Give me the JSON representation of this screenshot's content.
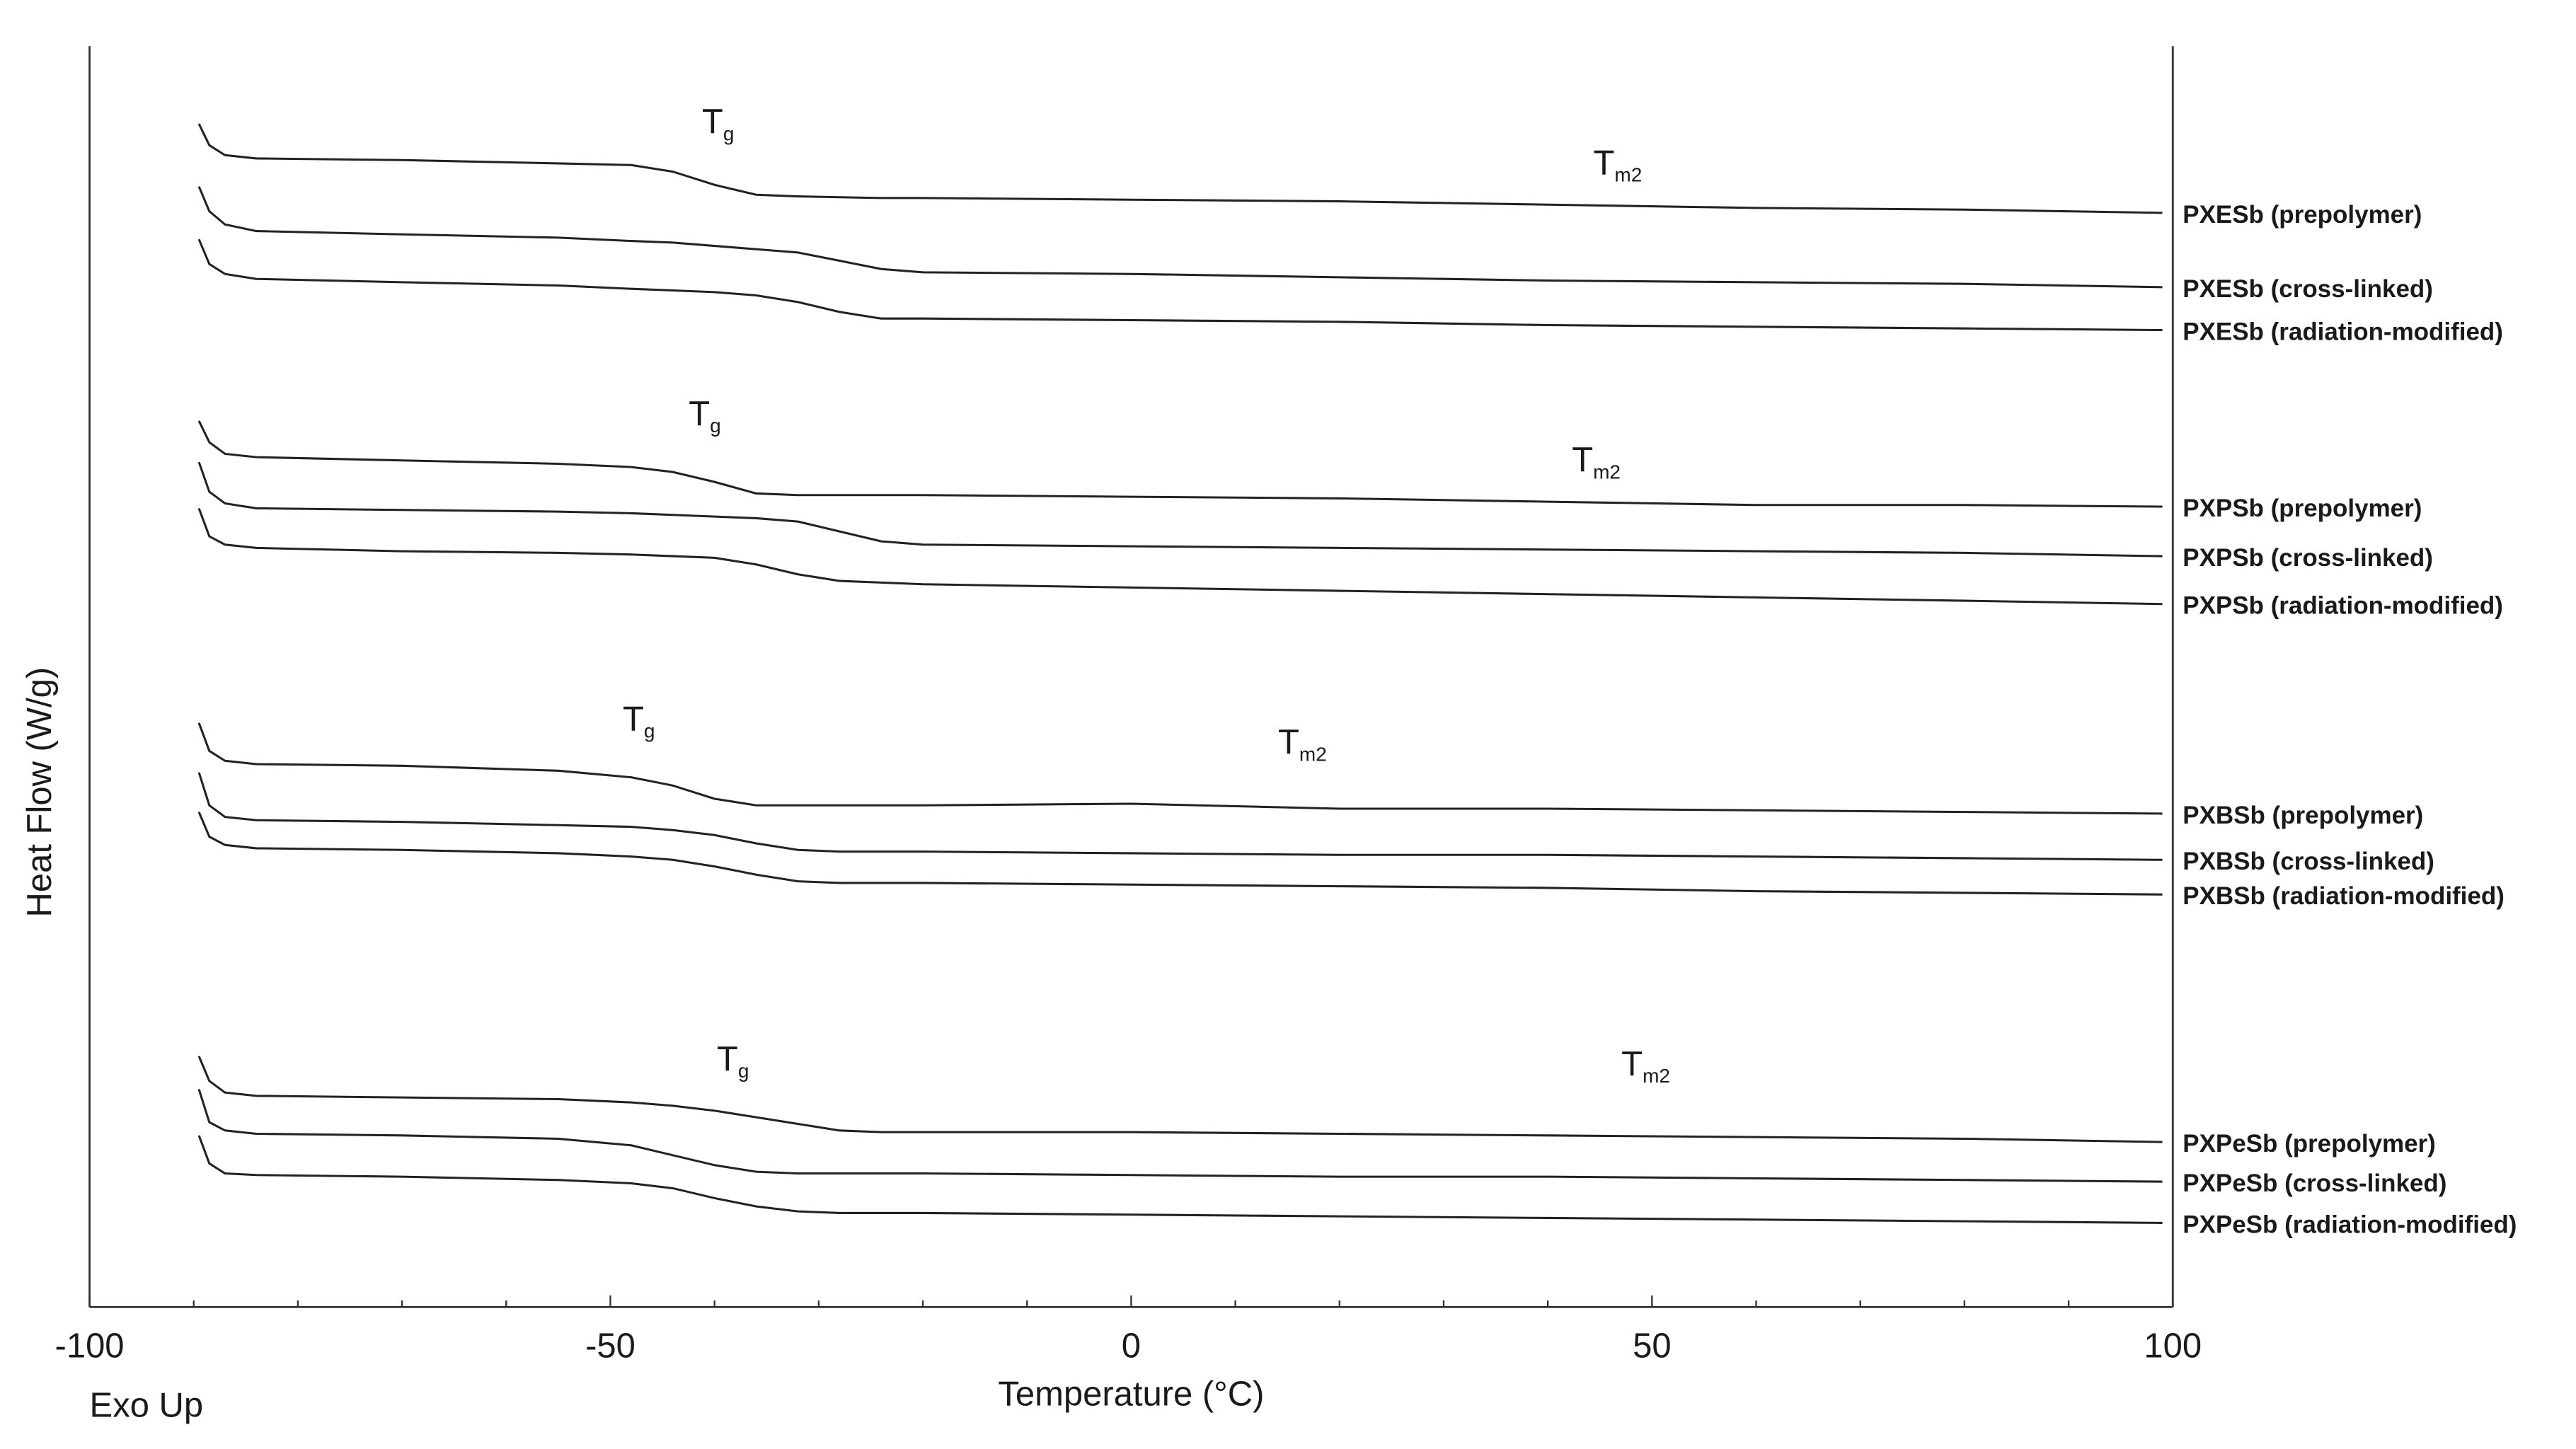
{
  "chart_data": {
    "type": "line",
    "y_label": "Heat Flow (W/g)",
    "x_label": "Temperature (°C)",
    "note": "Exo Up",
    "xlim": [
      -100,
      100
    ],
    "xticks": [
      -100,
      -50,
      0,
      50,
      100
    ],
    "xminorticks": [
      -90,
      -80,
      -70,
      -60,
      -40,
      -30,
      -20,
      -10,
      10,
      20,
      30,
      40,
      60,
      70,
      80,
      90
    ],
    "ylim": [
      0,
      76.4
    ],
    "x": [
      -89.5,
      -88.5,
      -87,
      -84,
      -70,
      -55,
      -48,
      -44,
      -40,
      -36,
      -32,
      -28,
      -24,
      -20,
      0,
      20,
      40,
      60,
      80,
      99
    ],
    "series": [
      {
        "name": "PXESb (prepolymer)",
        "color": "#222222",
        "values": [
          71.7,
          70.4,
          69.8,
          69.6,
          69.5,
          69.3,
          69.2,
          68.8,
          68.0,
          67.4,
          67.3,
          67.25,
          67.2,
          67.2,
          67.1,
          67.0,
          66.8,
          66.6,
          66.5,
          66.3
        ]
      },
      {
        "name": "PXESb (cross-linked)",
        "color": "#222222",
        "values": [
          67.9,
          66.4,
          65.6,
          65.2,
          65.0,
          64.8,
          64.6,
          64.5,
          64.3,
          64.1,
          63.9,
          63.4,
          62.9,
          62.7,
          62.6,
          62.4,
          62.2,
          62.1,
          62.0,
          61.8
        ]
      },
      {
        "name": "PXESb (radiation-modified)",
        "color": "#222222",
        "values": [
          64.7,
          63.2,
          62.6,
          62.3,
          62.1,
          61.9,
          61.7,
          61.6,
          61.5,
          61.3,
          60.9,
          60.3,
          59.9,
          59.9,
          59.8,
          59.7,
          59.5,
          59.4,
          59.3,
          59.2
        ]
      },
      {
        "name": "PXPSb (prepolymer)",
        "color": "#222222",
        "values": [
          53.7,
          52.4,
          51.7,
          51.5,
          51.3,
          51.1,
          50.9,
          50.6,
          50.0,
          49.3,
          49.2,
          49.2,
          49.2,
          49.2,
          49.1,
          49.0,
          48.8,
          48.6,
          48.6,
          48.5
        ]
      },
      {
        "name": "PXPSb (cross-linked)",
        "color": "#222222",
        "values": [
          51.2,
          49.4,
          48.7,
          48.4,
          48.3,
          48.2,
          48.1,
          48.0,
          47.9,
          47.8,
          47.6,
          47.0,
          46.4,
          46.2,
          46.1,
          46.0,
          45.9,
          45.8,
          45.7,
          45.5
        ]
      },
      {
        "name": "PXPSb (radiation-modified)",
        "color": "#222222",
        "values": [
          48.4,
          46.7,
          46.2,
          46.0,
          45.8,
          45.7,
          45.6,
          45.5,
          45.4,
          45.0,
          44.4,
          44.0,
          43.9,
          43.8,
          43.6,
          43.4,
          43.2,
          43.0,
          42.8,
          42.6
        ]
      },
      {
        "name": "PXBSb (prepolymer)",
        "color": "#222222",
        "values": [
          35.4,
          33.7,
          33.1,
          32.9,
          32.8,
          32.5,
          32.1,
          31.6,
          30.8,
          30.4,
          30.4,
          30.4,
          30.4,
          30.4,
          30.5,
          30.2,
          30.2,
          30.1,
          30.0,
          29.9
        ]
      },
      {
        "name": "PXBSb (cross-linked)",
        "color": "#222222",
        "values": [
          32.4,
          30.4,
          29.7,
          29.5,
          29.4,
          29.2,
          29.1,
          28.9,
          28.6,
          28.1,
          27.7,
          27.6,
          27.6,
          27.6,
          27.5,
          27.4,
          27.4,
          27.3,
          27.2,
          27.1
        ]
      },
      {
        "name": "PXBSb (radiation-modified)",
        "color": "#222222",
        "values": [
          30.0,
          28.5,
          28.0,
          27.8,
          27.7,
          27.5,
          27.3,
          27.1,
          26.7,
          26.2,
          25.8,
          25.7,
          25.7,
          25.7,
          25.6,
          25.5,
          25.4,
          25.2,
          25.1,
          25.0
        ]
      },
      {
        "name": "PXPeSb (prepolymer)",
        "color": "#222222",
        "values": [
          15.2,
          13.7,
          13.0,
          12.8,
          12.7,
          12.6,
          12.4,
          12.2,
          11.9,
          11.5,
          11.1,
          10.7,
          10.6,
          10.6,
          10.6,
          10.5,
          10.4,
          10.3,
          10.2,
          10.0
        ]
      },
      {
        "name": "PXPeSb (cross-linked)",
        "color": "#222222",
        "values": [
          13.2,
          11.2,
          10.7,
          10.5,
          10.4,
          10.2,
          9.8,
          9.2,
          8.6,
          8.2,
          8.1,
          8.1,
          8.1,
          8.1,
          8.0,
          7.9,
          7.9,
          7.8,
          7.7,
          7.6
        ]
      },
      {
        "name": "PXPeSb (radiation-modified)",
        "color": "#222222",
        "values": [
          10.4,
          8.7,
          8.1,
          8.0,
          7.9,
          7.7,
          7.5,
          7.2,
          6.6,
          6.1,
          5.8,
          5.7,
          5.7,
          5.7,
          5.6,
          5.5,
          5.4,
          5.3,
          5.2,
          5.1
        ]
      }
    ],
    "annotations": [
      {
        "text": "T",
        "sub": "g"
      },
      {
        "text": "T",
        "sub": "m2"
      },
      {
        "text": "T",
        "sub": "g"
      },
      {
        "text": "T",
        "sub": "m2"
      },
      {
        "text": "T",
        "sub": "g"
      },
      {
        "text": "T",
        "sub": "m2"
      },
      {
        "text": "T",
        "sub": "g"
      },
      {
        "text": "T",
        "sub": "m2"
      }
    ]
  }
}
